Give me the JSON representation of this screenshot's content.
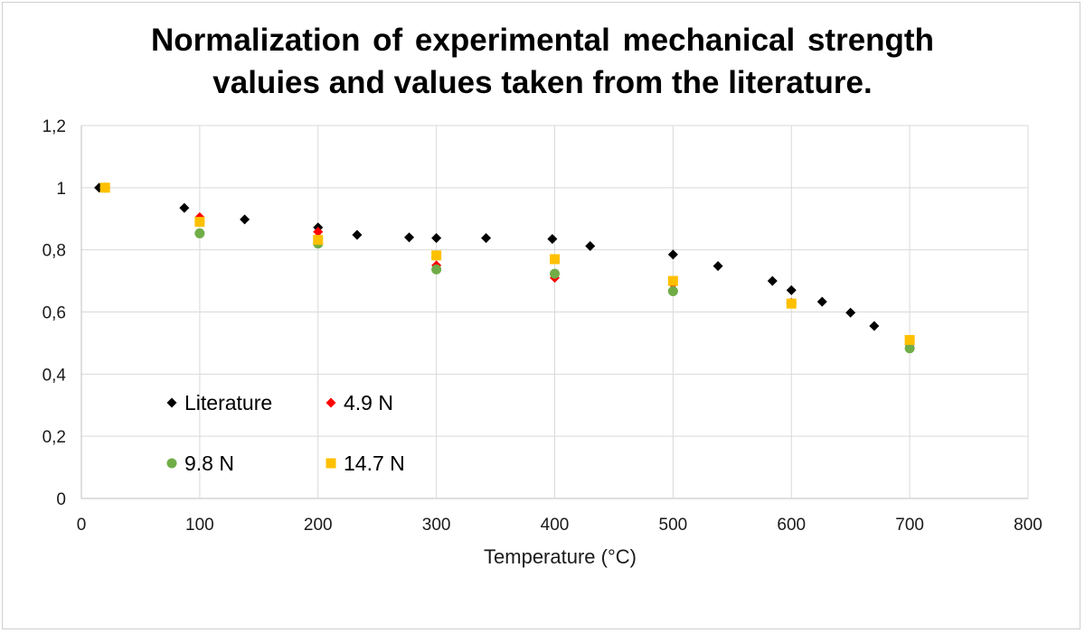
{
  "chart_data": {
    "type": "scatter",
    "title_lines": [
      "Normalization of experimental mechanical strength",
      "valuies and values taken from the literature."
    ],
    "xlabel": "Temperature (°C)",
    "ylabel": "",
    "xlim": [
      0,
      800
    ],
    "ylim": [
      0,
      1.2
    ],
    "x_ticks": [
      0,
      100,
      200,
      300,
      400,
      500,
      600,
      700,
      800
    ],
    "x_tick_labels": [
      "0",
      "100",
      "200",
      "300",
      "400",
      "500",
      "600",
      "700",
      "800"
    ],
    "y_ticks": [
      0,
      0.2,
      0.4,
      0.6,
      0.8,
      1,
      1.2
    ],
    "y_tick_labels": [
      "0",
      "0,2",
      "0,4",
      "0,6",
      "0,8",
      "1",
      "1,2"
    ],
    "grid": true,
    "legend_position": "bottom-left inside plot area",
    "series": [
      {
        "name": "Literature",
        "marker": "diamond",
        "color": "#000000",
        "x": [
          15,
          87,
          138,
          200,
          233,
          277,
          300,
          342,
          398,
          430,
          500,
          538,
          584,
          600,
          626,
          650,
          670
        ],
        "y": [
          1.0,
          0.935,
          0.898,
          0.872,
          0.848,
          0.84,
          0.838,
          0.838,
          0.835,
          0.812,
          0.785,
          0.748,
          0.7,
          0.67,
          0.633,
          0.598,
          0.555
        ]
      },
      {
        "name": "4.9 N",
        "marker": "diamond",
        "color": "#ff0000",
        "x": [
          20,
          100,
          200,
          300,
          400,
          500,
          600,
          700
        ],
        "y": [
          1.0,
          0.905,
          0.858,
          0.75,
          0.71,
          0.69,
          0.63,
          0.495
        ]
      },
      {
        "name": "9.8 N",
        "marker": "circle",
        "color": "#70ad47",
        "x": [
          20,
          100,
          200,
          300,
          400,
          500,
          600,
          700
        ],
        "y": [
          1.0,
          0.853,
          0.82,
          0.737,
          0.723,
          0.667,
          0.628,
          0.483
        ]
      },
      {
        "name": "14.7 N",
        "marker": "square",
        "color": "#ffc000",
        "x": [
          20,
          100,
          200,
          300,
          400,
          500,
          600,
          700
        ],
        "y": [
          1.0,
          0.89,
          0.832,
          0.782,
          0.77,
          0.7,
          0.627,
          0.51
        ]
      }
    ]
  }
}
